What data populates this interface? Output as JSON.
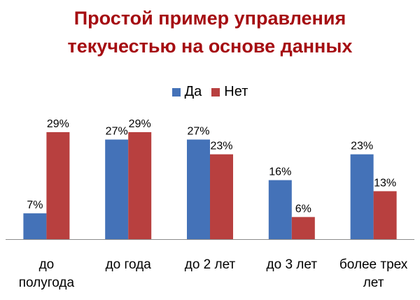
{
  "header": {
    "title_line1": "Простой пример управления",
    "title_line2": "текучестью на основе данных"
  },
  "chart_data": {
    "type": "bar",
    "categories": [
      [
        "до",
        "полугода"
      ],
      [
        "до года"
      ],
      [
        "до 2 лет"
      ],
      [
        "до 3 лет"
      ],
      [
        "более трех",
        "лет"
      ]
    ],
    "series": [
      {
        "name": "Да",
        "color": "#4472b8",
        "values": [
          7,
          27,
          27,
          16,
          23
        ],
        "labels": [
          "7%",
          "27%",
          "27%",
          "16%",
          "23%"
        ]
      },
      {
        "name": "Нет",
        "color": "#b8403f",
        "values": [
          29,
          29,
          23,
          6,
          13
        ],
        "labels": [
          "29%",
          "29%",
          "23%",
          "6%",
          "13%"
        ]
      }
    ],
    "ylim": [
      0,
      29
    ],
    "grid": false,
    "legend_position": "top-center"
  }
}
